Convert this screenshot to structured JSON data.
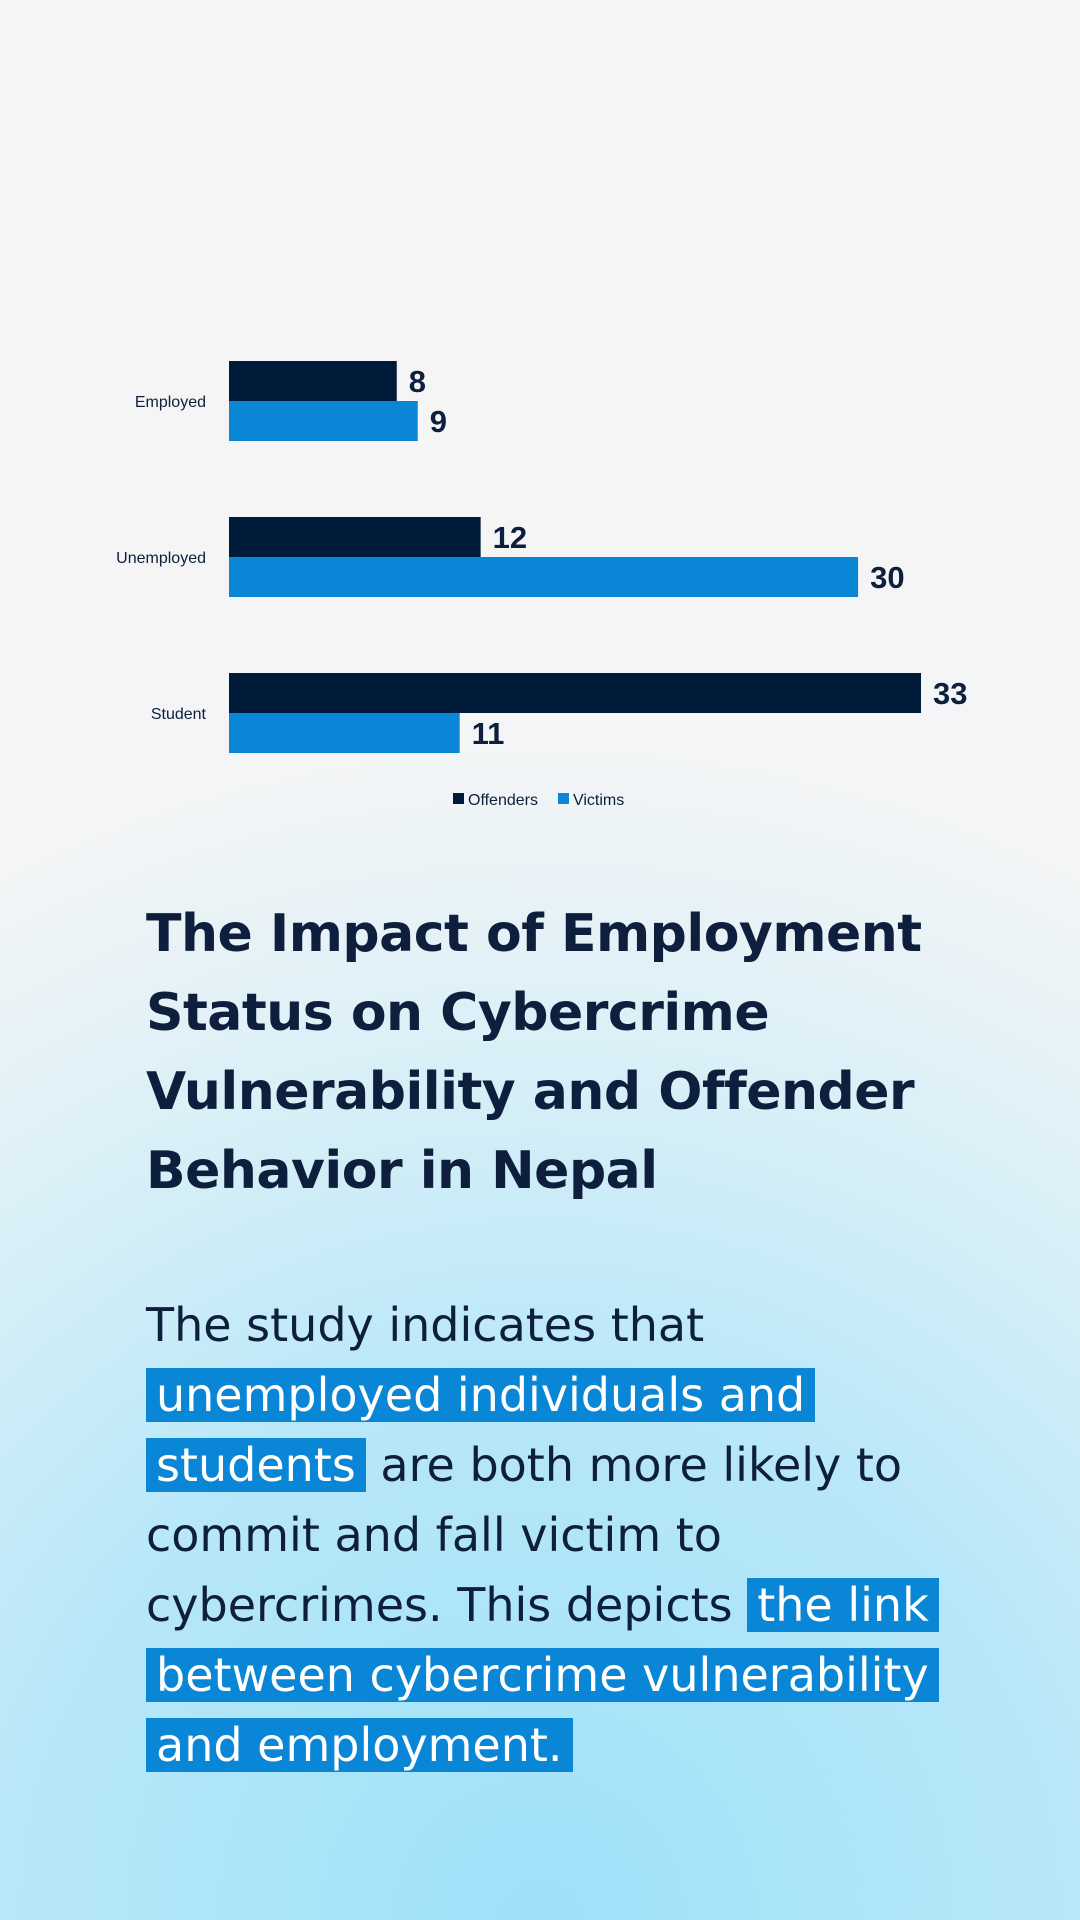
{
  "chart_data": {
    "type": "bar",
    "orientation": "horizontal",
    "categories": [
      "Employed",
      "Unemployed",
      "Student"
    ],
    "series": [
      {
        "name": "Offenders",
        "values": [
          8,
          12,
          33
        ],
        "color": "#001a3a"
      },
      {
        "name": "Victims",
        "values": [
          9,
          30,
          11
        ],
        "color": "#0a86d6"
      }
    ],
    "xlim": [
      0,
      33
    ],
    "grid": false,
    "legend_position": "bottom-center",
    "data_labels": true
  },
  "heading": {
    "title": "The Impact of Employment Status on Cybercrime Vulnerability and Offender Behavior in Nepal"
  },
  "body": {
    "text_1": "The study indicates that ",
    "highlight_1": "unemployed individuals and students",
    "text_2": " are both more likely to commit and fall victim to cybercrimes. This depicts ",
    "highlight_2": "the link between cybercrime vulnerability and employment."
  },
  "colors": {
    "dark_navy": "#001a3a",
    "accent_blue": "#0a86d6",
    "text": "#0d1f3c"
  }
}
